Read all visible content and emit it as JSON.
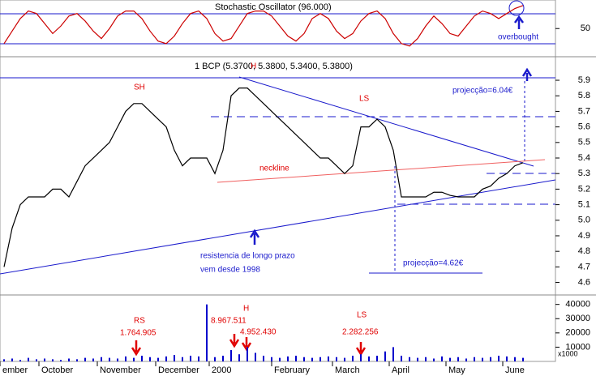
{
  "chart_data": [
    {
      "type": "line",
      "title": "Stochastic Oscillator (96.000)",
      "color": "#cc0000",
      "values": [
        20,
        45,
        70,
        85,
        80,
        60,
        40,
        55,
        75,
        80,
        65,
        45,
        30,
        50,
        75,
        85,
        85,
        70,
        45,
        25,
        20,
        35,
        60,
        80,
        85,
        70,
        40,
        25,
        30,
        55,
        80,
        85,
        85,
        75,
        55,
        35,
        25,
        40,
        70,
        80,
        70,
        45,
        30,
        40,
        65,
        80,
        85,
        70,
        40,
        20,
        15,
        30,
        55,
        75,
        60,
        40,
        35,
        55,
        75,
        85,
        80,
        70,
        80,
        90,
        96
      ],
      "ylim": [
        -3,
        107
      ],
      "yticks": [
        50
      ],
      "annotations": [
        "overbought"
      ]
    },
    {
      "type": "line",
      "title": "1 BCP (5.3700, 5.3800, 5.3400, 5.3800)",
      "color": "#000000",
      "values": [
        4.7,
        4.95,
        5.1,
        5.15,
        5.15,
        5.15,
        5.2,
        5.2,
        5.15,
        5.25,
        5.35,
        5.4,
        5.45,
        5.5,
        5.6,
        5.7,
        5.75,
        5.75,
        5.7,
        5.65,
        5.6,
        5.45,
        5.35,
        5.4,
        5.4,
        5.4,
        5.3,
        5.45,
        5.8,
        5.85,
        5.85,
        5.8,
        5.75,
        5.7,
        5.65,
        5.6,
        5.55,
        5.5,
        5.45,
        5.4,
        5.4,
        5.35,
        5.3,
        5.35,
        5.6,
        5.6,
        5.65,
        5.6,
        5.45,
        5.15,
        5.15,
        5.15,
        5.15,
        5.18,
        5.18,
        5.16,
        5.15,
        5.15,
        5.15,
        5.2,
        5.22,
        5.27,
        5.3,
        5.35,
        5.37
      ],
      "ylim": [
        4.53,
        6.02
      ],
      "yticks": [
        4.6,
        4.7,
        4.8,
        4.9,
        {
          "value": 5,
          "label": "5.0"
        },
        5.1,
        5.2,
        5.3,
        5.4,
        5.5,
        5.6,
        5.7,
        5.8,
        5.9
      ],
      "annotations": [
        "SH",
        "H",
        "LS",
        "neckline",
        "projecção=6.04€",
        "projecção=4.62€",
        "resistencia de longo prazo",
        "vem desde 1998"
      ]
    },
    {
      "type": "bar",
      "color": "#0000cc",
      "values": [
        1500,
        2000,
        1000,
        2500,
        1500,
        2000,
        1500,
        1000,
        2000,
        1500,
        2500,
        2000,
        3000,
        2500,
        2000,
        3500,
        2500,
        4000,
        3000,
        2500,
        3500,
        4500,
        3000,
        4000,
        3500,
        40000,
        3000,
        4000,
        8000,
        5000,
        10000,
        6000,
        4000,
        3000,
        2500,
        3500,
        4000,
        3000,
        2500,
        3000,
        3500,
        3000,
        2500,
        4000,
        5000,
        3500,
        4000,
        7000,
        10000,
        4000,
        3000,
        2500,
        3000,
        2000,
        3500,
        2500,
        3000,
        2000,
        3000,
        2500,
        3000,
        4000,
        3500,
        3000,
        2500
      ],
      "ylim": [
        0,
        45500
      ],
      "yticks": [
        10000,
        20000,
        30000,
        40000
      ],
      "unit_label": "x1000",
      "annotations": [
        "RS",
        "1.764.905",
        "H",
        "8.967.511",
        "4.952.430",
        "LS",
        "2.282.256"
      ],
      "x_labels": [
        "ember",
        "October",
        "November",
        "December",
        "2000",
        "February",
        "March",
        "April",
        "May",
        "June"
      ]
    }
  ]
}
